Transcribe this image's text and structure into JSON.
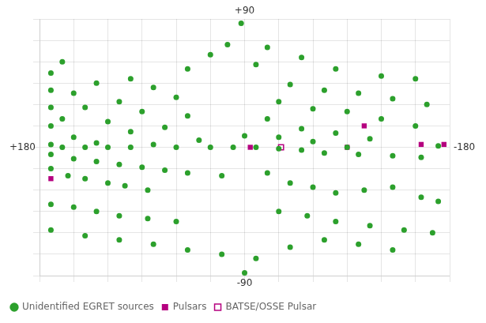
{
  "chart_data": {
    "type": "scatter",
    "xlim": [
      180,
      -180
    ],
    "xticks": [
      180,
      150,
      120,
      90,
      60,
      30,
      0,
      -30,
      -60,
      -90,
      -120,
      -150,
      -180
    ],
    "ylim": [
      -90,
      90
    ],
    "yticks": [
      -90,
      -75,
      -60,
      -45,
      -30,
      -15,
      0,
      15,
      30,
      45,
      60,
      75,
      90
    ],
    "grid": true,
    "tick_labels": false,
    "legend": "lower left",
    "annotations": [
      {
        "text": "+90",
        "x": 0,
        "y": 90
      },
      {
        "text": "-90",
        "x": 0,
        "y": -90
      },
      {
        "text": "+180",
        "x": 180,
        "y": 0
      },
      {
        "text": "-180",
        "x": -180,
        "y": 0
      }
    ],
    "series": [
      {
        "name": "Unidentified EGRET sources",
        "color": "#2ca02c",
        "marker": "circle",
        "values": [
          [
            3,
            87
          ],
          [
            15,
            72
          ],
          [
            -20,
            70
          ],
          [
            30,
            65
          ],
          [
            -50,
            63
          ],
          [
            160,
            60
          ],
          [
            -10,
            58
          ],
          [
            50,
            55
          ],
          [
            -80,
            55
          ],
          [
            170,
            52
          ],
          [
            -120,
            50
          ],
          [
            -150,
            48
          ],
          [
            100,
            48
          ],
          [
            130,
            45
          ],
          [
            -40,
            44
          ],
          [
            80,
            42
          ],
          [
            -70,
            40
          ],
          [
            170,
            40
          ],
          [
            150,
            38
          ],
          [
            -100,
            38
          ],
          [
            60,
            35
          ],
          [
            -130,
            34
          ],
          [
            110,
            32
          ],
          [
            -30,
            32
          ],
          [
            -160,
            30
          ],
          [
            170,
            28
          ],
          [
            140,
            28
          ],
          [
            -60,
            27
          ],
          [
            90,
            25
          ],
          [
            -90,
            25
          ],
          [
            50,
            22
          ],
          [
            160,
            20
          ],
          [
            -20,
            20
          ],
          [
            -120,
            20
          ],
          [
            120,
            18
          ],
          [
            170,
            15
          ],
          [
            -150,
            15
          ],
          [
            70,
            14
          ],
          [
            -50,
            13
          ],
          [
            100,
            11
          ],
          [
            -80,
            10
          ],
          [
            0,
            8
          ],
          [
            150,
            7
          ],
          [
            -30,
            7
          ],
          [
            -110,
            6
          ],
          [
            40,
            5
          ],
          [
            -60,
            4
          ],
          [
            130,
            3
          ],
          [
            170,
            2
          ],
          [
            80,
            2
          ],
          [
            -170,
            1
          ],
          [
            -90,
            0
          ],
          [
            160,
            0
          ],
          [
            140,
            0
          ],
          [
            120,
            0
          ],
          [
            100,
            0
          ],
          [
            60,
            0
          ],
          [
            30,
            0
          ],
          [
            10,
            0
          ],
          [
            -10,
            0
          ],
          [
            -30,
            -1
          ],
          [
            -50,
            -2
          ],
          [
            -70,
            -4
          ],
          [
            -100,
            -5
          ],
          [
            -130,
            -6
          ],
          [
            -155,
            -7
          ],
          [
            170,
            -5
          ],
          [
            150,
            -8
          ],
          [
            130,
            -10
          ],
          [
            110,
            -12
          ],
          [
            90,
            -14
          ],
          [
            70,
            -16
          ],
          [
            50,
            -18
          ],
          [
            20,
            -20
          ],
          [
            -20,
            -18
          ],
          [
            170,
            -15
          ],
          [
            155,
            -20
          ],
          [
            140,
            -22
          ],
          [
            120,
            -25
          ],
          [
            105,
            -27
          ],
          [
            85,
            -30
          ],
          [
            -40,
            -25
          ],
          [
            -60,
            -28
          ],
          [
            -80,
            -32
          ],
          [
            -105,
            -30
          ],
          [
            -130,
            -28
          ],
          [
            -155,
            -35
          ],
          [
            -170,
            -38
          ],
          [
            170,
            -40
          ],
          [
            150,
            -42
          ],
          [
            130,
            -45
          ],
          [
            110,
            -48
          ],
          [
            85,
            -50
          ],
          [
            60,
            -52
          ],
          [
            -30,
            -45
          ],
          [
            -55,
            -48
          ],
          [
            -80,
            -52
          ],
          [
            -110,
            -55
          ],
          [
            -140,
            -58
          ],
          [
            -165,
            -60
          ],
          [
            170,
            -58
          ],
          [
            140,
            -62
          ],
          [
            110,
            -65
          ],
          [
            80,
            -68
          ],
          [
            50,
            -72
          ],
          [
            20,
            -75
          ],
          [
            -10,
            -78
          ],
          [
            -40,
            -70
          ],
          [
            -70,
            -65
          ],
          [
            -100,
            -68
          ],
          [
            -130,
            -72
          ],
          [
            0,
            -88
          ]
        ]
      },
      {
        "name": "Pulsars",
        "color": "#b5007f",
        "marker": "square",
        "values": [
          [
            -175,
            2
          ],
          [
            -5,
            0
          ],
          [
            -90,
            0
          ],
          [
            -155,
            2
          ],
          [
            -105,
            15
          ],
          [
            170,
            -22
          ]
        ]
      },
      {
        "name": "BATSE/OSSE Pulsar",
        "color": "#b5007f",
        "marker": "open_square",
        "values": [
          [
            -32,
            0
          ]
        ]
      }
    ]
  }
}
